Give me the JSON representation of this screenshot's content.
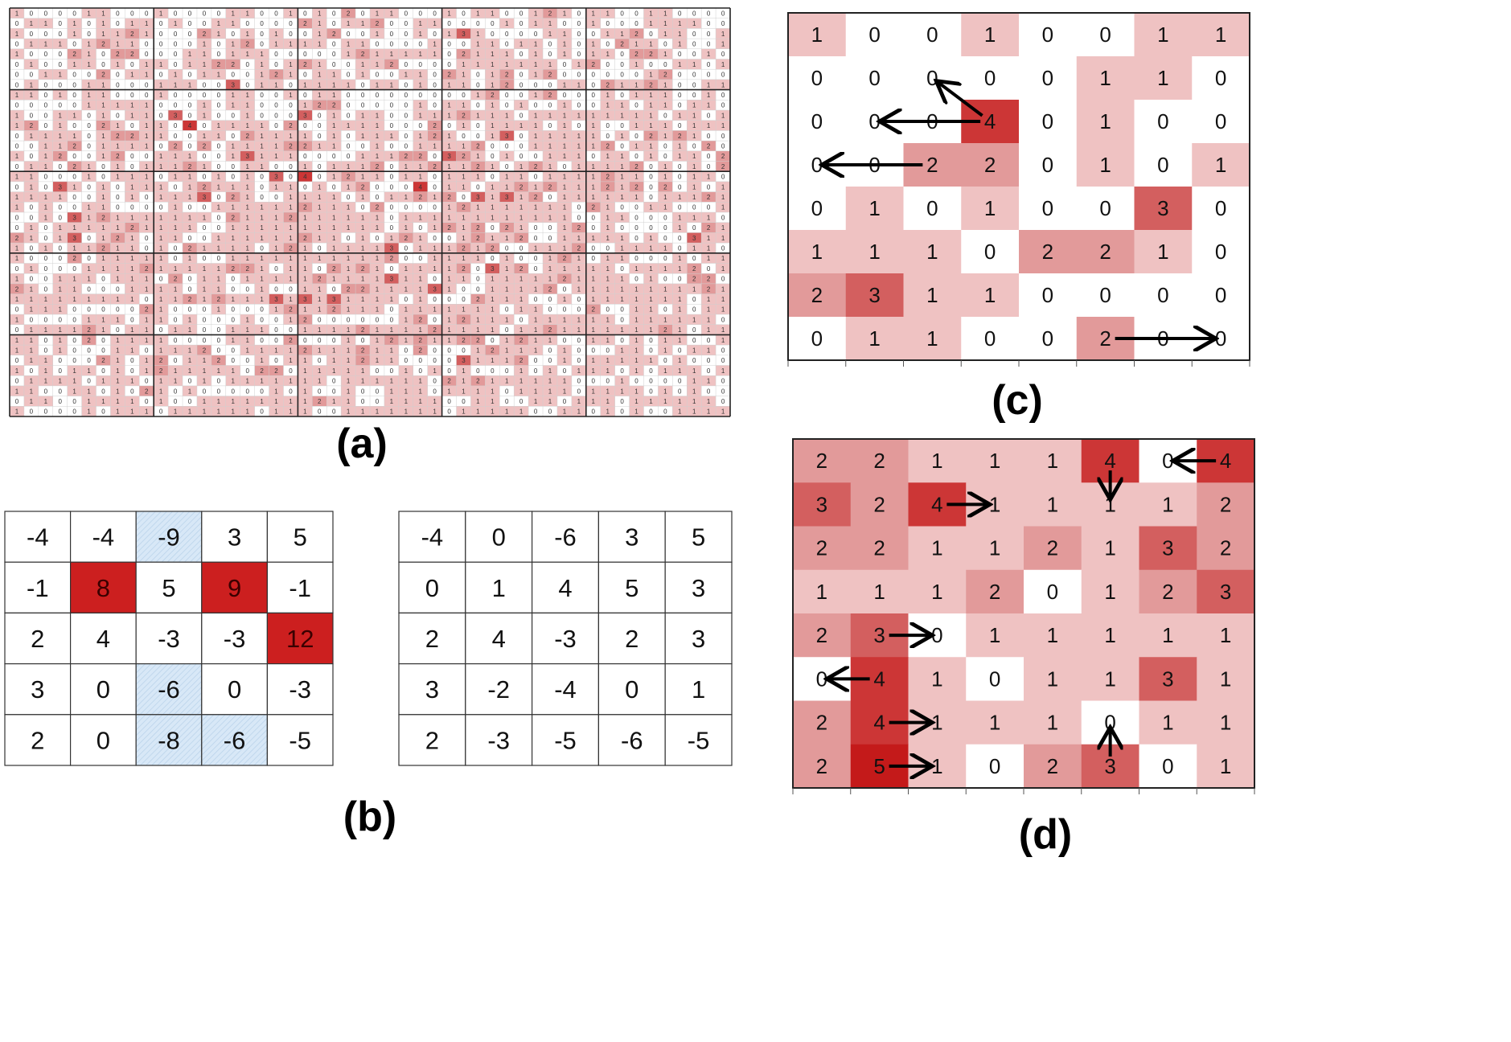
{
  "colors": {
    "value_0": "#ffffff",
    "value_1": "#efc2c2",
    "value_2": "#e29a9a",
    "value_3": "#d35f5f",
    "value_4": "#cc3636",
    "value_5": "#c41a1a",
    "value_6": "#b51212",
    "highlight_red": "#cc1f1f",
    "highlight_blue": "#d8e8f7",
    "grid": "#555555",
    "arrow": "#000000"
  },
  "captions": {
    "a": "(a)",
    "b": "(b)",
    "c": "(c)",
    "d": "(d)"
  },
  "panel_a": {
    "rows": 40,
    "cols": 50,
    "block_rows": 5,
    "block_cols": 5,
    "grid": [
      "10000110001000011001010201100010110012101100110000",
      "01101010110100110000210112001100001011001000111100",
      "10001011210002101010012001001013100001100112011001",
      "01110121100001012011110110000100110110101021101001",
      "10002102200011011100000121111102111010101102210010",
      "01001101011011220101210011200001111111012001001101",
      "00110020110101100121011010011021012012000000120000",
      "01000110001110030110111101101011012000110211210011",
      "11010110001000011001011000000000120012000101110010",
      "00000111110001011000122000001011010100100110110110",
      "10011010110301001000301011001112111011111111101101",
      "12010021011040111102001111000201011110101001110111",
      "01111012211001102111101011101210013011111010212100",
      "00112011110202011112211001001111200011111201101020",
      "10120012001110013111000011122032101001110110101102",
      "01102101011121001100101112011211210121011112010102",
      "11000101110110101030401211011011101101111211010110",
      "01031010111012111011010120004011011212111212020101",
      "11110010101113021001111010112120313120111111011121",
      "10100110000100111111211102000012111111102100110001",
      "00103121111111021112111111011111111111100110001110",
      "01011111211110011111111111010121202100120100001021",
      "21013012101100111111211010121001211200111110100311",
      "10101121101021111012101111301112120011120011110110",
      "10002011111010011111111111200111101001210110001011",
      "01000111121111122101102121011112031201111101111201",
      "10011101110201101111121111311011011111211110100220",
      "21011000111101100100110221111310011112011111111121",
      "11111111101121211131313111101000211100101111111011",
      "01110000021000100012112111011111110110002001101011",
      "10000111011010001001200000012012111011111101111110",
      "01111210110110011100111121111211110112111111121011",
      "11010201111000011002000101212112201211001101011001",
      "11010001101112001111211121102000121110100011010110",
      "01100021012011200101101121100003111200101111101000",
      "10101101012111110220111110010101000101011101011101",
      "01111011101101011111110111111021211111100010000110",
      "11001101021010000010100100111011110111101111010100",
      "01100111101001111111121100111100110011011101111110",
      "10000101110111111011100111111101111100110101001111"
    ]
  },
  "panel_b": {
    "left": [
      [
        "-4",
        "-4",
        "-9",
        "3",
        "5"
      ],
      [
        "-1",
        "8",
        "5",
        "9",
        "-1"
      ],
      [
        "2",
        "4",
        "-3",
        "-3",
        "12"
      ],
      [
        "3",
        "0",
        "-6",
        "0",
        "-3"
      ],
      [
        "2",
        "0",
        "-8",
        "-6",
        "-5"
      ]
    ],
    "left_red": [
      [
        1,
        1
      ],
      [
        1,
        3
      ],
      [
        2,
        4
      ]
    ],
    "left_blue": [
      [
        0,
        2
      ],
      [
        3,
        2
      ],
      [
        4,
        2
      ],
      [
        4,
        3
      ]
    ],
    "right": [
      [
        "-4",
        "0",
        "-6",
        "3",
        "5"
      ],
      [
        "0",
        "1",
        "4",
        "5",
        "3"
      ],
      [
        "2",
        "4",
        "-3",
        "2",
        "3"
      ],
      [
        "3",
        "-2",
        "-4",
        "0",
        "1"
      ],
      [
        "2",
        "-3",
        "-5",
        "-6",
        "-5"
      ]
    ]
  },
  "panel_c": {
    "grid": [
      [
        1,
        0,
        0,
        1,
        0,
        0,
        1,
        1
      ],
      [
        0,
        0,
        0,
        0,
        0,
        1,
        1,
        0
      ],
      [
        0,
        0,
        0,
        4,
        0,
        1,
        0,
        0
      ],
      [
        0,
        0,
        2,
        2,
        0,
        1,
        0,
        1
      ],
      [
        0,
        1,
        0,
        1,
        0,
        0,
        3,
        0
      ],
      [
        1,
        1,
        1,
        0,
        2,
        2,
        1,
        0
      ],
      [
        2,
        3,
        1,
        1,
        0,
        0,
        0,
        0
      ],
      [
        0,
        1,
        1,
        0,
        0,
        2,
        0,
        0
      ]
    ],
    "arrows": [
      {
        "from": [
          2,
          3
        ],
        "to": [
          1,
          2
        ],
        "dir": "up-left"
      },
      {
        "from": [
          2,
          3
        ],
        "to": [
          2,
          1
        ],
        "dir": "left"
      },
      {
        "from": [
          3,
          2
        ],
        "to": [
          3,
          0
        ],
        "dir": "left"
      },
      {
        "from": [
          7,
          5
        ],
        "to": [
          7,
          7
        ],
        "dir": "right"
      }
    ]
  },
  "panel_d": {
    "grid": [
      [
        2,
        2,
        1,
        1,
        1,
        4,
        0,
        4
      ],
      [
        3,
        2,
        4,
        1,
        1,
        1,
        1,
        2
      ],
      [
        2,
        2,
        1,
        1,
        2,
        1,
        3,
        2
      ],
      [
        1,
        1,
        1,
        2,
        0,
        1,
        2,
        3
      ],
      [
        2,
        3,
        0,
        1,
        1,
        1,
        1,
        1
      ],
      [
        0,
        4,
        1,
        0,
        1,
        1,
        3,
        1
      ],
      [
        2,
        4,
        1,
        1,
        1,
        0,
        1,
        1
      ],
      [
        2,
        5,
        1,
        0,
        2,
        3,
        0,
        1
      ]
    ],
    "arrows": [
      {
        "from": [
          0,
          7
        ],
        "to": [
          0,
          6
        ],
        "dir": "left"
      },
      {
        "from": [
          0,
          5
        ],
        "to": [
          1,
          5
        ],
        "dir": "down"
      },
      {
        "from": [
          1,
          2
        ],
        "to": [
          1,
          3
        ],
        "dir": "right"
      },
      {
        "from": [
          4,
          1
        ],
        "to": [
          4,
          2
        ],
        "dir": "right"
      },
      {
        "from": [
          5,
          1
        ],
        "to": [
          5,
          0
        ],
        "dir": "left"
      },
      {
        "from": [
          6,
          1
        ],
        "to": [
          6,
          2
        ],
        "dir": "right"
      },
      {
        "from": [
          7,
          1
        ],
        "to": [
          7,
          2
        ],
        "dir": "right"
      },
      {
        "from": [
          7,
          5
        ],
        "to": [
          6,
          5
        ],
        "dir": "up"
      }
    ]
  }
}
